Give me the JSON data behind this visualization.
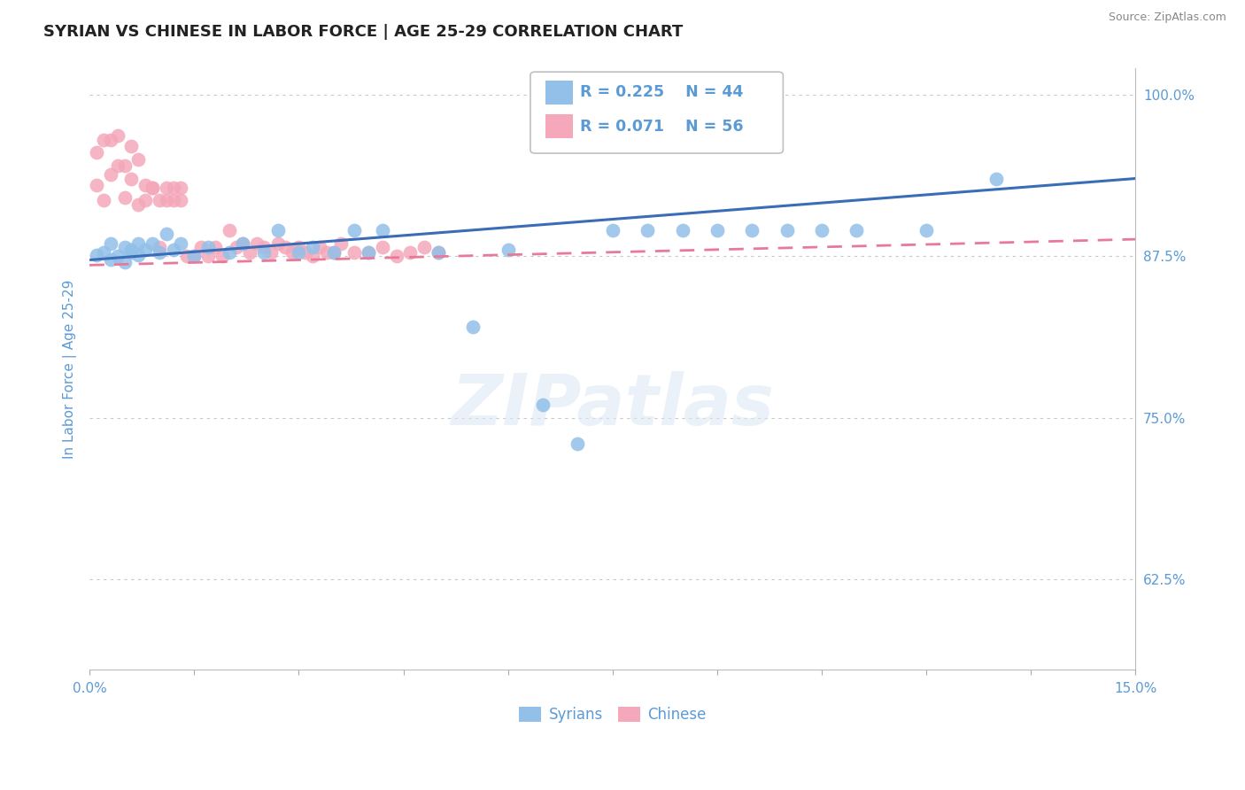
{
  "title": "SYRIAN VS CHINESE IN LABOR FORCE | AGE 25-29 CORRELATION CHART",
  "source": "Source: ZipAtlas.com",
  "ylabel": "In Labor Force | Age 25-29",
  "xlim": [
    0.0,
    0.15
  ],
  "ylim": [
    0.555,
    1.02
  ],
  "yticks": [
    0.625,
    0.75,
    0.875,
    1.0
  ],
  "yticklabels": [
    "62.5%",
    "75.0%",
    "87.5%",
    "100.0%"
  ],
  "title_fontsize": 13,
  "axis_label_fontsize": 11,
  "tick_fontsize": 11,
  "label_color": "#5b9bd5",
  "background_color": "#ffffff",
  "grid_color": "#c8c8c8",
  "watermark": "ZIPatlas",
  "legend_R_blue": "R = 0.225",
  "legend_N_blue": "N = 44",
  "legend_R_pink": "R = 0.071",
  "legend_N_pink": "N = 56",
  "blue_color": "#92c0e8",
  "pink_color": "#f4a8ba",
  "blue_line_color": "#3b6cb7",
  "pink_line_color": "#e8799a",
  "blue_line_x0": 0.0,
  "blue_line_y0": 0.872,
  "blue_line_x1": 0.15,
  "blue_line_y1": 0.935,
  "pink_line_x0": 0.0,
  "pink_line_y0": 0.868,
  "pink_line_x1": 0.15,
  "pink_line_y1": 0.888,
  "syrians_x": [
    0.001,
    0.002,
    0.003,
    0.003,
    0.004,
    0.005,
    0.005,
    0.006,
    0.006,
    0.007,
    0.007,
    0.008,
    0.009,
    0.01,
    0.011,
    0.012,
    0.013,
    0.015,
    0.017,
    0.02,
    0.022,
    0.025,
    0.027,
    0.03,
    0.032,
    0.035,
    0.038,
    0.04,
    0.042,
    0.05,
    0.055,
    0.06,
    0.065,
    0.07,
    0.075,
    0.08,
    0.085,
    0.09,
    0.095,
    0.1,
    0.105,
    0.11,
    0.12,
    0.13
  ],
  "syrians_y": [
    0.876,
    0.878,
    0.872,
    0.885,
    0.875,
    0.882,
    0.87,
    0.88,
    0.878,
    0.885,
    0.876,
    0.88,
    0.885,
    0.878,
    0.892,
    0.88,
    0.885,
    0.875,
    0.882,
    0.878,
    0.885,
    0.878,
    0.895,
    0.878,
    0.882,
    0.878,
    0.895,
    0.878,
    0.895,
    0.878,
    0.82,
    0.88,
    0.76,
    0.73,
    0.895,
    0.895,
    0.895,
    0.895,
    0.895,
    0.895,
    0.895,
    0.895,
    0.895,
    0.935
  ],
  "chinese_x": [
    0.001,
    0.001,
    0.002,
    0.002,
    0.003,
    0.003,
    0.004,
    0.004,
    0.005,
    0.005,
    0.006,
    0.006,
    0.007,
    0.007,
    0.008,
    0.008,
    0.009,
    0.009,
    0.01,
    0.01,
    0.011,
    0.011,
    0.012,
    0.012,
    0.013,
    0.013,
    0.014,
    0.015,
    0.016,
    0.017,
    0.018,
    0.019,
    0.02,
    0.021,
    0.022,
    0.023,
    0.024,
    0.025,
    0.026,
    0.027,
    0.028,
    0.029,
    0.03,
    0.031,
    0.032,
    0.033,
    0.034,
    0.035,
    0.036,
    0.038,
    0.04,
    0.042,
    0.044,
    0.046,
    0.048,
    0.05
  ],
  "chinese_y": [
    0.955,
    0.93,
    0.965,
    0.918,
    0.965,
    0.938,
    0.968,
    0.945,
    0.945,
    0.92,
    0.96,
    0.935,
    0.95,
    0.915,
    0.93,
    0.918,
    0.928,
    0.928,
    0.882,
    0.918,
    0.918,
    0.928,
    0.918,
    0.928,
    0.918,
    0.928,
    0.875,
    0.875,
    0.882,
    0.875,
    0.882,
    0.875,
    0.895,
    0.882,
    0.885,
    0.878,
    0.885,
    0.882,
    0.878,
    0.885,
    0.882,
    0.878,
    0.882,
    0.878,
    0.875,
    0.882,
    0.878,
    0.878,
    0.885,
    0.878,
    0.878,
    0.882,
    0.875,
    0.878,
    0.882,
    0.878
  ]
}
